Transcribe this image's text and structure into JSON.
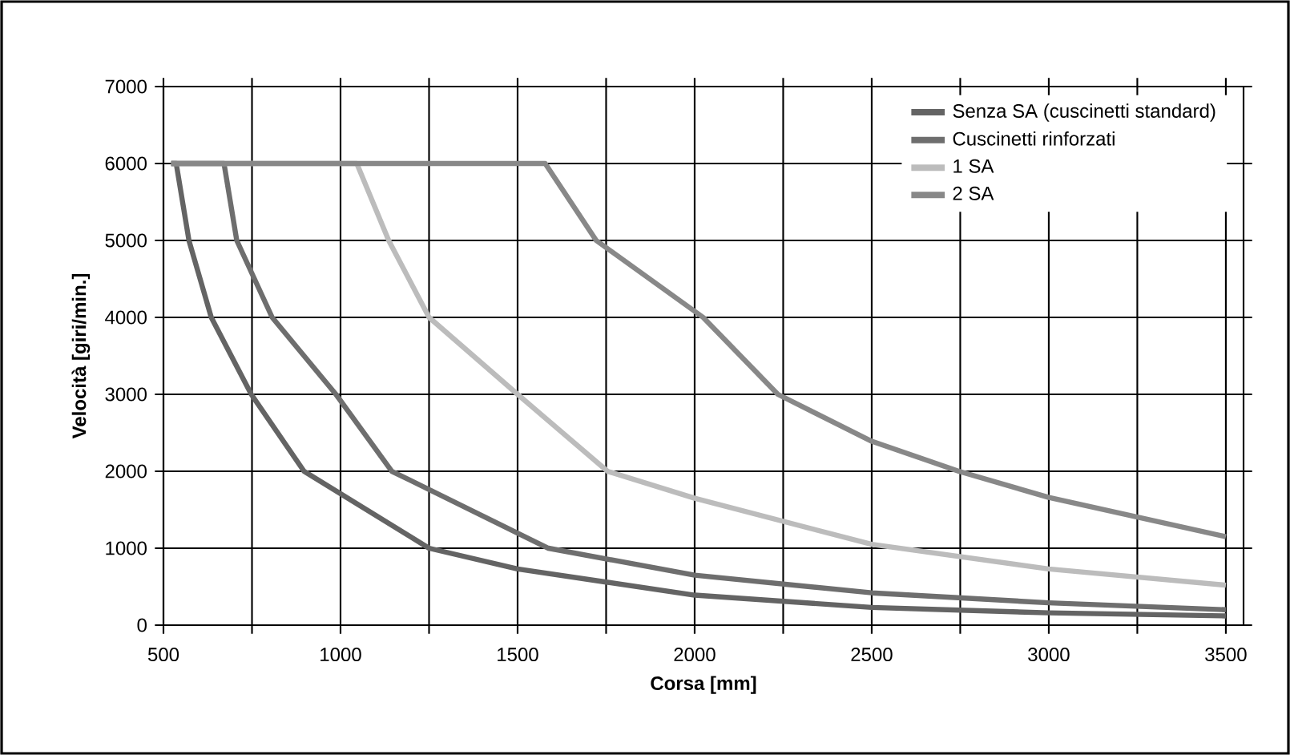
{
  "chart_data": {
    "type": "line",
    "xlabel": "Corsa [mm]",
    "ylabel": "Velocità [giri/min.]",
    "xlim": [
      500,
      3550
    ],
    "ylim": [
      0,
      7000
    ],
    "xticks": [
      500,
      {
        "value": 750,
        "label": null
      },
      1000,
      {
        "value": 1250,
        "label": null
      },
      1500,
      {
        "value": 1750,
        "label": null
      },
      2000,
      {
        "value": 2250,
        "label": null
      },
      2500,
      {
        "value": 2750,
        "label": null
      },
      3000,
      {
        "value": 3250,
        "label": null
      },
      3500
    ],
    "yticks": [
      0,
      1000,
      2000,
      3000,
      4000,
      5000,
      6000,
      7000
    ],
    "grid": true,
    "legend": "top right",
    "marker": "none",
    "line_style": "solid",
    "series": [
      {
        "name": "Senza SA (cuscinetti standard)",
        "color": "#646464",
        "x": [
          522,
          536,
          572,
          635,
          748,
          897,
          1250,
          1500,
          1750,
          2000,
          2500,
          3000,
          3500
        ],
        "values": [
          6000,
          6000,
          5000,
          4000,
          3000,
          2000,
          1000,
          730,
          560,
          390,
          230,
          160,
          120
        ]
      },
      {
        "name": "Cuscinetti rinforzati",
        "color": "#6e6e6e",
        "x": [
          522,
          671,
          707,
          807,
          987,
          1145,
          1587,
          2000,
          2500,
          3000,
          3500
        ],
        "values": [
          6000,
          6000,
          5000,
          4000,
          3000,
          2000,
          1000,
          650,
          420,
          290,
          200
        ]
      },
      {
        "name": "1 SA",
        "color": "#bcbcbc",
        "x": [
          522,
          1046,
          1136,
          1250,
          1500,
          1754,
          2000,
          2500,
          3000,
          3500
        ],
        "values": [
          6000,
          6000,
          5000,
          4000,
          3000,
          2000,
          1650,
          1050,
          730,
          520
        ]
      },
      {
        "name": "2 SA",
        "color": "#888888",
        "x": [
          522,
          1578,
          1722,
          2024,
          2235,
          2500,
          2746,
          3000,
          3500
        ],
        "values": [
          6000,
          6000,
          5000,
          4000,
          3000,
          2390,
          2000,
          1660,
          1150
        ]
      }
    ]
  }
}
